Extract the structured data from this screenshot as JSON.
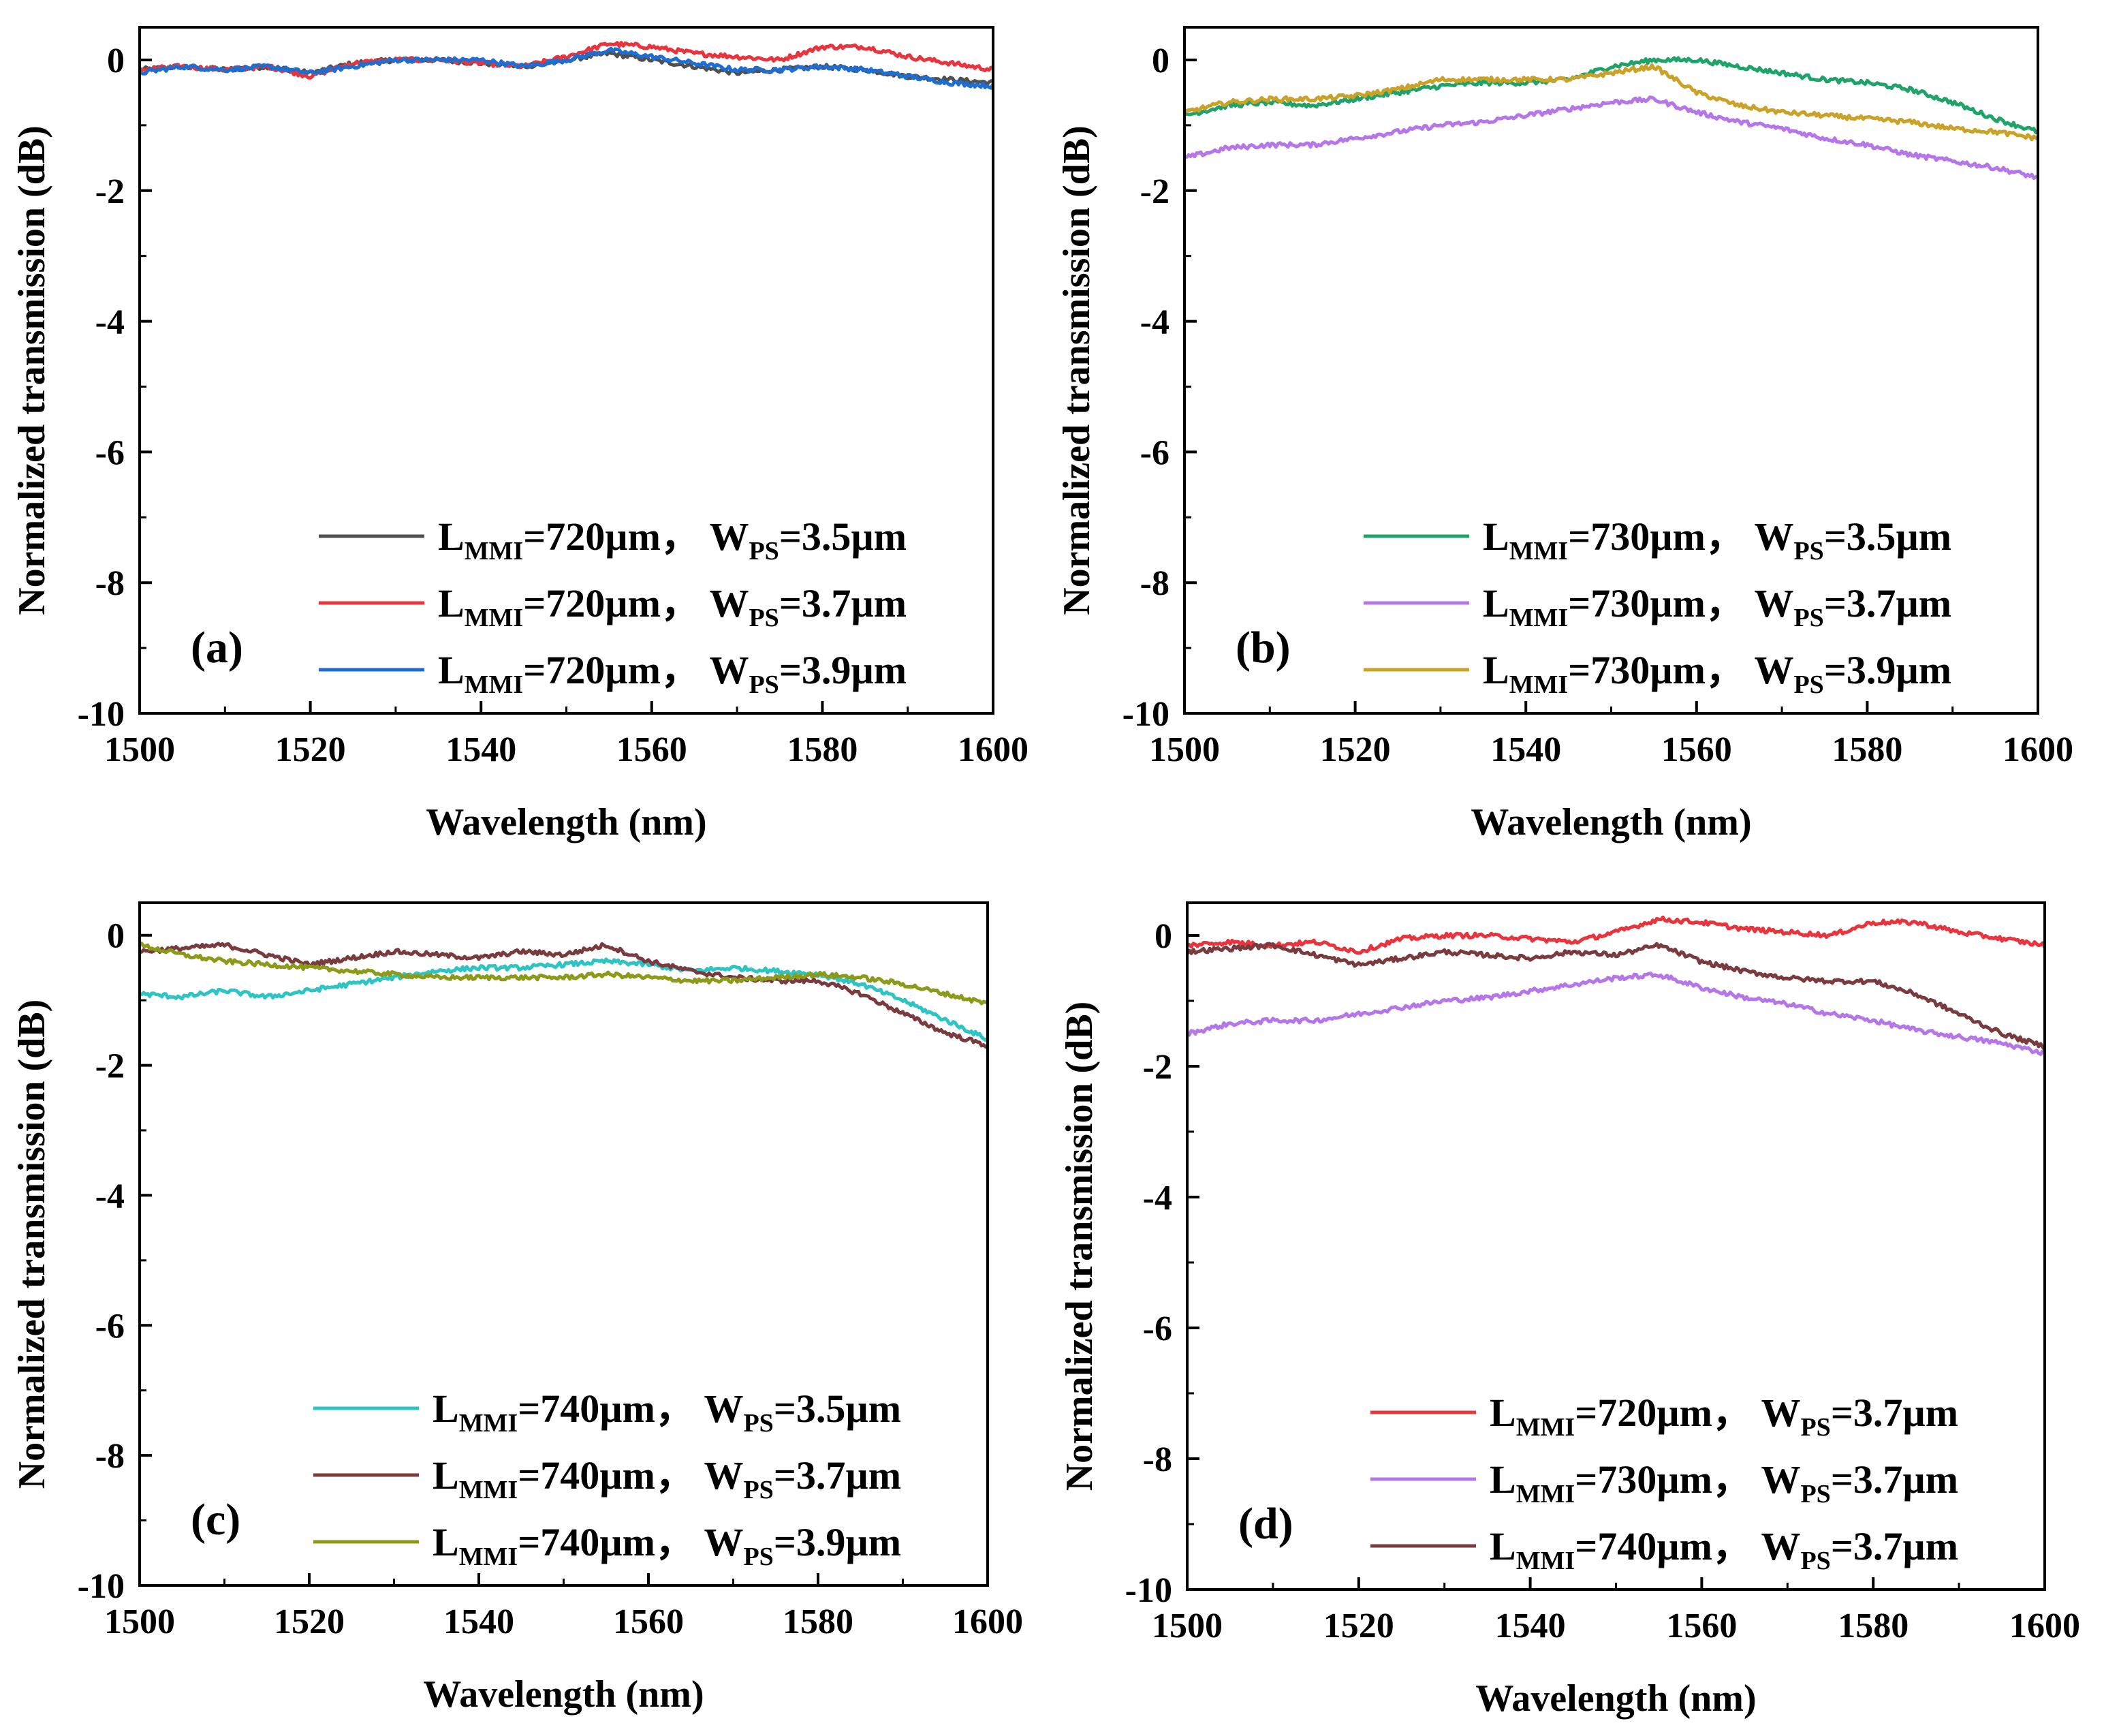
{
  "chart_data": [
    {
      "type": "line",
      "panel_label": "(a)",
      "xlabel": "Wavelength (nm)",
      "ylabel": "Normalized transmission (dB)",
      "xlim": [
        1500,
        1600
      ],
      "ylim": [
        -10,
        0.5
      ],
      "xticks": [
        1500,
        1520,
        1540,
        1560,
        1580,
        1600
      ],
      "yticks": [
        0,
        -2,
        -4,
        -6,
        -8,
        -10
      ],
      "legend_position": "bottom-right",
      "series": [
        {
          "label": {
            "main": "L",
            "sub1": "MMI",
            "mid": "=720µm，  W",
            "sub2": "PS",
            "end": "=3.5µm"
          },
          "color": "#505050",
          "x": [
            1500,
            1505,
            1510,
            1515,
            1520,
            1525,
            1530,
            1535,
            1540,
            1545,
            1550,
            1555,
            1560,
            1565,
            1570,
            1575,
            1580,
            1585,
            1590,
            1595,
            1600
          ],
          "y": [
            -0.15,
            -0.1,
            -0.15,
            -0.1,
            -0.2,
            -0.05,
            0.0,
            0.0,
            -0.05,
            -0.1,
            0.0,
            0.1,
            0.0,
            -0.1,
            -0.2,
            -0.15,
            -0.1,
            -0.15,
            -0.25,
            -0.3,
            -0.35
          ]
        },
        {
          "label": {
            "main": "L",
            "sub1": "MMI",
            "mid": "=720µm，  W",
            "sub2": "PS",
            "end": "=3.7µm"
          },
          "color": "#e8343c",
          "x": [
            1500,
            1505,
            1510,
            1515,
            1520,
            1525,
            1530,
            1535,
            1540,
            1545,
            1550,
            1555,
            1560,
            1565,
            1570,
            1575,
            1580,
            1585,
            1590,
            1595,
            1600
          ],
          "y": [
            -0.15,
            -0.1,
            -0.15,
            -0.1,
            -0.25,
            -0.05,
            0.0,
            0.0,
            -0.05,
            -0.1,
            0.05,
            0.25,
            0.2,
            0.1,
            0.05,
            0.0,
            0.2,
            0.2,
            0.05,
            -0.05,
            -0.15
          ]
        },
        {
          "label": {
            "main": "L",
            "sub1": "MMI",
            "mid": "=720µm，  W",
            "sub2": "PS",
            "end": "=3.9µm"
          },
          "color": "#1e6ed2",
          "x": [
            1500,
            1505,
            1510,
            1515,
            1520,
            1525,
            1530,
            1535,
            1540,
            1545,
            1550,
            1555,
            1560,
            1565,
            1570,
            1575,
            1580,
            1585,
            1590,
            1595,
            1600
          ],
          "y": [
            -0.2,
            -0.1,
            -0.15,
            -0.1,
            -0.2,
            -0.1,
            0.0,
            0.0,
            0.0,
            -0.1,
            0.0,
            0.15,
            0.05,
            -0.05,
            -0.15,
            -0.15,
            -0.1,
            -0.15,
            -0.25,
            -0.35,
            -0.4
          ]
        }
      ]
    },
    {
      "type": "line",
      "panel_label": "(b)",
      "xlabel": "Wavelength (nm)",
      "ylabel": "Normalized transmission (dB)",
      "xlim": [
        1500,
        1600
      ],
      "ylim": [
        -10,
        0.5
      ],
      "xticks": [
        1500,
        1520,
        1540,
        1560,
        1580,
        1600
      ],
      "yticks": [
        0,
        -2,
        -4,
        -6,
        -8,
        -10
      ],
      "legend_position": "bottom-right",
      "series": [
        {
          "label": {
            "main": "L",
            "sub1": "MMI",
            "mid": "=730µm，  W",
            "sub2": "PS",
            "end": "=3.5µm"
          },
          "color": "#1fa36a",
          "x": [
            1500,
            1505,
            1510,
            1515,
            1520,
            1525,
            1530,
            1535,
            1540,
            1545,
            1550,
            1555,
            1560,
            1565,
            1570,
            1575,
            1580,
            1585,
            1590,
            1595,
            1600
          ],
          "y": [
            -0.85,
            -0.7,
            -0.65,
            -0.7,
            -0.6,
            -0.5,
            -0.4,
            -0.35,
            -0.35,
            -0.3,
            -0.1,
            0.0,
            0.0,
            -0.1,
            -0.2,
            -0.3,
            -0.35,
            -0.45,
            -0.65,
            -0.9,
            -1.1
          ]
        },
        {
          "label": {
            "main": "L",
            "sub1": "MMI",
            "mid": "=730µm，  W",
            "sub2": "PS",
            "end": "=3.7µm"
          },
          "color": "#b577e8",
          "x": [
            1500,
            1505,
            1510,
            1515,
            1520,
            1525,
            1530,
            1535,
            1540,
            1545,
            1550,
            1555,
            1560,
            1565,
            1570,
            1575,
            1580,
            1585,
            1590,
            1595,
            1600
          ],
          "y": [
            -1.5,
            -1.35,
            -1.3,
            -1.3,
            -1.2,
            -1.1,
            -1.0,
            -0.95,
            -0.85,
            -0.75,
            -0.65,
            -0.6,
            -0.8,
            -0.95,
            -1.05,
            -1.2,
            -1.3,
            -1.45,
            -1.55,
            -1.65,
            -1.8
          ]
        },
        {
          "label": {
            "main": "L",
            "sub1": "MMI",
            "mid": "=730µm，  W",
            "sub2": "PS",
            "end": "=3.9µm"
          },
          "color": "#c9a227",
          "x": [
            1500,
            1505,
            1510,
            1515,
            1520,
            1525,
            1530,
            1535,
            1540,
            1545,
            1550,
            1555,
            1560,
            1565,
            1570,
            1575,
            1580,
            1585,
            1590,
            1595,
            1600
          ],
          "y": [
            -0.8,
            -0.65,
            -0.6,
            -0.6,
            -0.55,
            -0.45,
            -0.3,
            -0.3,
            -0.3,
            -0.3,
            -0.2,
            -0.1,
            -0.5,
            -0.7,
            -0.8,
            -0.85,
            -0.9,
            -0.95,
            -1.05,
            -1.1,
            -1.2
          ]
        }
      ]
    },
    {
      "type": "line",
      "panel_label": "(c)",
      "xlabel": "Wavelength (nm)",
      "ylabel": "Normalized transmission (dB)",
      "xlim": [
        1500,
        1600
      ],
      "ylim": [
        -10,
        0.5
      ],
      "xticks": [
        1500,
        1520,
        1540,
        1560,
        1580,
        1600
      ],
      "yticks": [
        0,
        -2,
        -4,
        -6,
        -8,
        -10
      ],
      "legend_position": "bottom-right",
      "series": [
        {
          "label": {
            "main": "L",
            "sub1": "MMI",
            "mid": "=740µm，  W",
            "sub2": "PS",
            "end": "=3.5µm"
          },
          "color": "#2ec4c4",
          "x": [
            1500,
            1505,
            1510,
            1515,
            1520,
            1525,
            1530,
            1535,
            1540,
            1545,
            1550,
            1555,
            1560,
            1565,
            1570,
            1575,
            1580,
            1585,
            1590,
            1595,
            1600
          ],
          "y": [
            -0.9,
            -0.95,
            -0.85,
            -0.95,
            -0.85,
            -0.75,
            -0.65,
            -0.55,
            -0.5,
            -0.5,
            -0.45,
            -0.4,
            -0.45,
            -0.55,
            -0.5,
            -0.55,
            -0.6,
            -0.75,
            -1.0,
            -1.3,
            -1.6
          ]
        },
        {
          "label": {
            "main": "L",
            "sub1": "MMI",
            "mid": "=740µm，  W",
            "sub2": "PS",
            "end": "=3.7µm"
          },
          "color": "#7a3b3f",
          "x": [
            1500,
            1505,
            1510,
            1515,
            1520,
            1525,
            1530,
            1535,
            1540,
            1545,
            1550,
            1555,
            1560,
            1565,
            1570,
            1575,
            1580,
            1585,
            1590,
            1595,
            1600
          ],
          "y": [
            -0.25,
            -0.2,
            -0.15,
            -0.3,
            -0.45,
            -0.35,
            -0.25,
            -0.3,
            -0.35,
            -0.25,
            -0.3,
            -0.15,
            -0.4,
            -0.55,
            -0.65,
            -0.7,
            -0.7,
            -0.9,
            -1.2,
            -1.5,
            -1.7
          ]
        },
        {
          "label": {
            "main": "L",
            "sub1": "MMI",
            "mid": "=740µm，  W",
            "sub2": "PS",
            "end": "=3.9µm"
          },
          "color": "#8c9a1a",
          "x": [
            1500,
            1505,
            1510,
            1515,
            1520,
            1525,
            1530,
            1535,
            1540,
            1545,
            1550,
            1555,
            1560,
            1565,
            1570,
            1575,
            1580,
            1585,
            1590,
            1595,
            1600
          ],
          "y": [
            -0.15,
            -0.3,
            -0.4,
            -0.45,
            -0.5,
            -0.55,
            -0.6,
            -0.65,
            -0.65,
            -0.65,
            -0.65,
            -0.6,
            -0.65,
            -0.7,
            -0.7,
            -0.65,
            -0.6,
            -0.65,
            -0.75,
            -0.9,
            -1.05
          ]
        }
      ]
    },
    {
      "type": "line",
      "panel_label": "(d)",
      "xlabel": "Wavelength (nm)",
      "ylabel": "Normalized transmission (dB)",
      "xlim": [
        1500,
        1600
      ],
      "ylim": [
        -10,
        0.5
      ],
      "xticks": [
        1500,
        1520,
        1540,
        1560,
        1580,
        1600
      ],
      "yticks": [
        0,
        -2,
        -4,
        -6,
        -8,
        -10
      ],
      "legend_position": "bottom-right",
      "series": [
        {
          "label": {
            "main": "L",
            "sub1": "MMI",
            "mid": "=720µm，  W",
            "sub2": "PS",
            "end": "=3.7µm"
          },
          "color": "#e8343c",
          "x": [
            1500,
            1505,
            1510,
            1515,
            1520,
            1525,
            1530,
            1535,
            1540,
            1545,
            1550,
            1555,
            1560,
            1565,
            1570,
            1575,
            1580,
            1585,
            1590,
            1595,
            1600
          ],
          "y": [
            -0.15,
            -0.1,
            -0.15,
            -0.1,
            -0.25,
            -0.05,
            0.0,
            0.0,
            -0.05,
            -0.1,
            0.05,
            0.25,
            0.2,
            0.1,
            0.05,
            0.0,
            0.2,
            0.2,
            0.05,
            -0.05,
            -0.15
          ]
        },
        {
          "label": {
            "main": "L",
            "sub1": "MMI",
            "mid": "=730µm，  W",
            "sub2": "PS",
            "end": "=3.7µm"
          },
          "color": "#b577e8",
          "x": [
            1500,
            1505,
            1510,
            1515,
            1520,
            1525,
            1530,
            1535,
            1540,
            1545,
            1550,
            1555,
            1560,
            1565,
            1570,
            1575,
            1580,
            1585,
            1590,
            1595,
            1600
          ],
          "y": [
            -1.5,
            -1.35,
            -1.3,
            -1.3,
            -1.2,
            -1.1,
            -1.0,
            -0.95,
            -0.85,
            -0.75,
            -0.65,
            -0.6,
            -0.8,
            -0.95,
            -1.05,
            -1.2,
            -1.3,
            -1.45,
            -1.55,
            -1.65,
            -1.8
          ]
        },
        {
          "label": {
            "main": "L",
            "sub1": "MMI",
            "mid": "=740µm，  W",
            "sub2": "PS",
            "end": "=3.7µm"
          },
          "color": "#7a3b3f",
          "x": [
            1500,
            1505,
            1510,
            1515,
            1520,
            1525,
            1530,
            1535,
            1540,
            1545,
            1550,
            1555,
            1560,
            1565,
            1570,
            1575,
            1580,
            1585,
            1590,
            1595,
            1600
          ],
          "y": [
            -0.25,
            -0.2,
            -0.15,
            -0.3,
            -0.45,
            -0.35,
            -0.25,
            -0.3,
            -0.35,
            -0.25,
            -0.3,
            -0.15,
            -0.4,
            -0.55,
            -0.65,
            -0.7,
            -0.7,
            -0.9,
            -1.2,
            -1.5,
            -1.7
          ]
        }
      ]
    }
  ]
}
